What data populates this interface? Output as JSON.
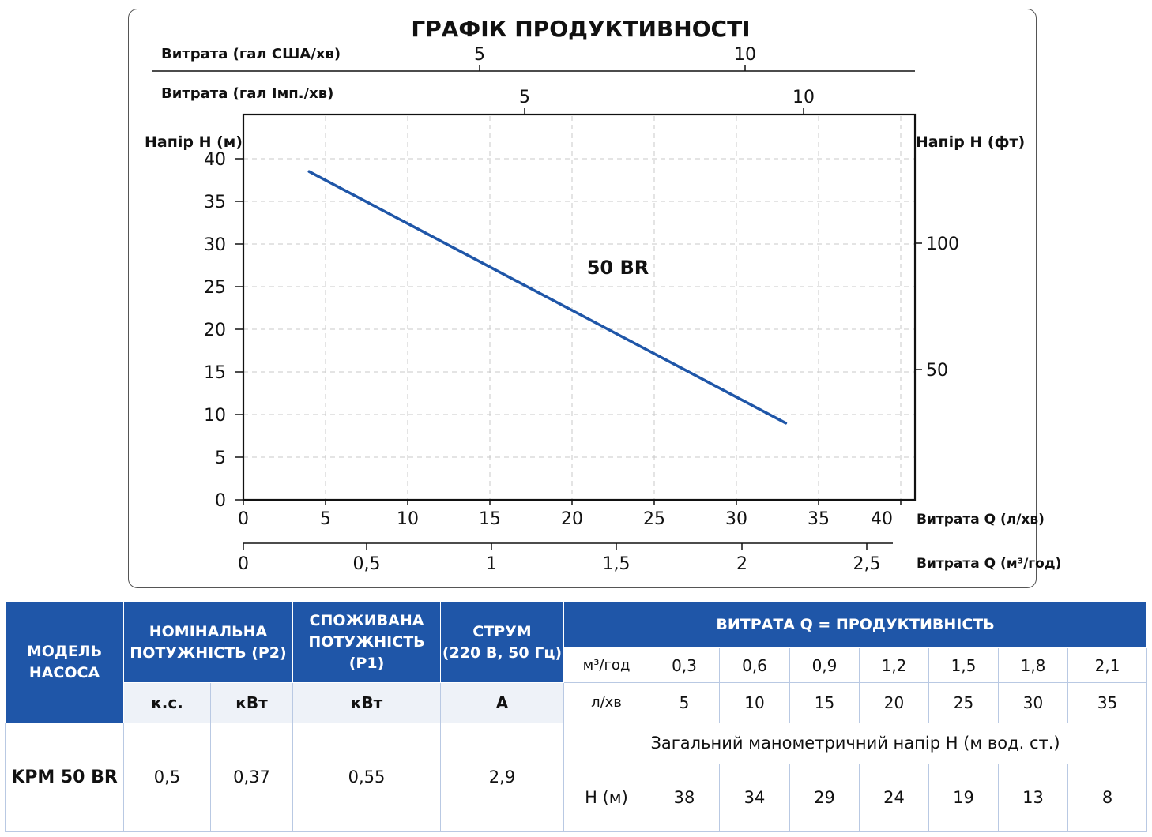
{
  "chart_data": {
    "type": "line",
    "title": "ГРАФІК ПРОДУКТИВНОСТІ",
    "xlabel": "Витрата Q (л/хв)",
    "ylabel": "Напір H (м)",
    "xlim": [
      0,
      41
    ],
    "ylim": [
      0,
      40
    ],
    "x_ticks": [
      "0",
      "5",
      "10",
      "15",
      "20",
      "25",
      "30",
      "35",
      "40"
    ],
    "y_ticks": [
      "0",
      "5",
      "10",
      "15",
      "20",
      "25",
      "30",
      "35",
      "40"
    ],
    "grid": true,
    "series": [
      {
        "name": "50 BR",
        "x": [
          4,
          33
        ],
        "y": [
          38.5,
          9
        ]
      }
    ],
    "secondary_axes": {
      "top_us": {
        "label": "Витрата (гал США/хв)",
        "ticks": [
          "5",
          "10"
        ]
      },
      "top_imp": {
        "label": "Витрата (гал Імп./хв)",
        "ticks": [
          "5",
          "10"
        ]
      },
      "right": {
        "label": "Напір H (фт)",
        "ticks": [
          "100",
          "50"
        ]
      },
      "bottom_m3": {
        "label": "Витрата Q (м³/год)",
        "ticks": [
          "0",
          "0,5",
          "1",
          "1,5",
          "2",
          "2,5"
        ]
      }
    },
    "colors": {
      "curve": "#1f56a8",
      "title": "#1f56a8"
    }
  },
  "table": {
    "h_model": [
      "МОДЕЛЬ",
      "НАСОСА"
    ],
    "h_p2": [
      "НОМІНАЛЬНА",
      "ПОТУЖНІСТЬ (P2)"
    ],
    "h_p1": [
      "СПОЖИВАНА",
      "ПОТУЖНІСТЬ (P1)"
    ],
    "h_current": [
      "СТРУМ",
      "(220 В, 50 Гц)"
    ],
    "h_flow": "ВИТРАТА Q = ПРОДУКТИВНІСТЬ",
    "u_hp": "к.с.",
    "u_kw": "кВт",
    "u_kw2": "кВт",
    "u_a": "А",
    "m3_label": "м³/год",
    "m3_values": [
      "0,3",
      "0,6",
      "0,9",
      "1,2",
      "1,5",
      "1,8",
      "2,1"
    ],
    "lmin_label": "л/хв",
    "lmin_values": [
      "5",
      "10",
      "15",
      "20",
      "25",
      "30",
      "35"
    ],
    "head_caption": "Загальний манометричний напір Н (м вод. ст.)",
    "model": "KPM 50 BR",
    "hp": "0,5",
    "p2_kw": "0,37",
    "p1_kw": "0,55",
    "current": "2,9",
    "h_label": "Н (м)",
    "h_values": [
      "38",
      "34",
      "29",
      "24",
      "19",
      "13",
      "8"
    ],
    "colors": {
      "header": "#1f56a8",
      "subheader": "#eef2f8",
      "border": "#b9c9e3"
    }
  }
}
